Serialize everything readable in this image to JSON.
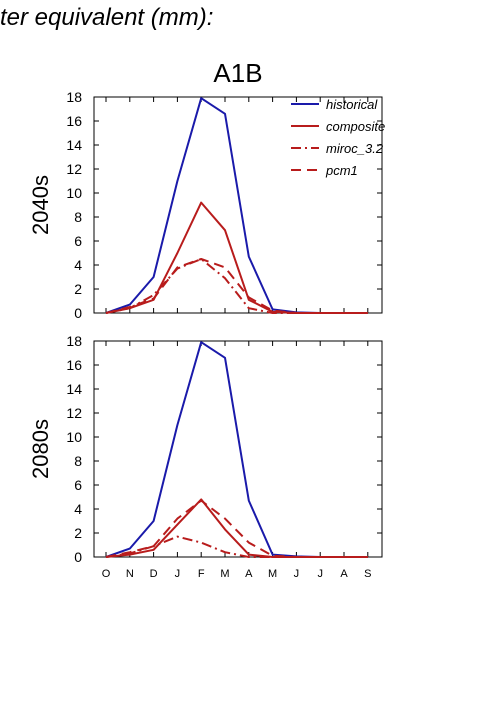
{
  "header": {
    "title": "ter equivalent (mm):"
  },
  "chart_data": {
    "type": "line",
    "title": "A1B",
    "categories": [
      "O",
      "N",
      "D",
      "J",
      "F",
      "M",
      "A",
      "M",
      "J",
      "J",
      "A",
      "S"
    ],
    "ylim": [
      0,
      18
    ],
    "yticks": [
      0,
      2,
      4,
      6,
      8,
      10,
      12,
      14,
      16,
      18
    ],
    "grid": false,
    "legend": {
      "placement": "top-right",
      "entries": [
        "historical",
        "composite",
        "miroc_3.2",
        "pcm1"
      ]
    },
    "colors": {
      "historical": "#1a1aaa",
      "scenario": "#b81c1c"
    },
    "panels": [
      {
        "ylabel": "2040s",
        "series": [
          {
            "name": "historical",
            "values": [
              0,
              0.7,
              3.0,
              11.0,
              17.9,
              16.6,
              4.7,
              0.3,
              0.05,
              0,
              0,
              0
            ]
          },
          {
            "name": "composite",
            "values": [
              0,
              0.4,
              1.1,
              5.0,
              9.2,
              6.9,
              1.1,
              0.1,
              0,
              0,
              0,
              0
            ]
          },
          {
            "name": "miroc_3.2",
            "values": [
              0,
              0.4,
              1.5,
              3.7,
              4.5,
              2.9,
              0.4,
              0,
              0,
              0,
              0,
              0
            ]
          },
          {
            "name": "pcm1",
            "values": [
              0,
              0.5,
              1.2,
              3.8,
              4.5,
              3.8,
              1.3,
              0.2,
              0,
              0,
              0,
              0
            ]
          }
        ]
      },
      {
        "ylabel": "2080s",
        "series": [
          {
            "name": "historical",
            "values": [
              0,
              0.7,
              3.0,
              11.0,
              17.9,
              16.6,
              4.7,
              0.2,
              0.05,
              0,
              0,
              0
            ]
          },
          {
            "name": "composite",
            "values": [
              0,
              0.2,
              0.6,
              2.7,
              4.8,
              2.3,
              0.2,
              0,
              0,
              0,
              0,
              0
            ]
          },
          {
            "name": "miroc_3.2",
            "values": [
              0,
              0.3,
              0.9,
              1.7,
              1.2,
              0.4,
              0,
              0,
              0,
              0,
              0,
              0
            ]
          },
          {
            "name": "pcm1",
            "values": [
              0,
              0.4,
              0.9,
              3.2,
              4.7,
              3.2,
              1.2,
              0.1,
              0,
              0,
              0,
              0
            ]
          }
        ]
      }
    ]
  }
}
